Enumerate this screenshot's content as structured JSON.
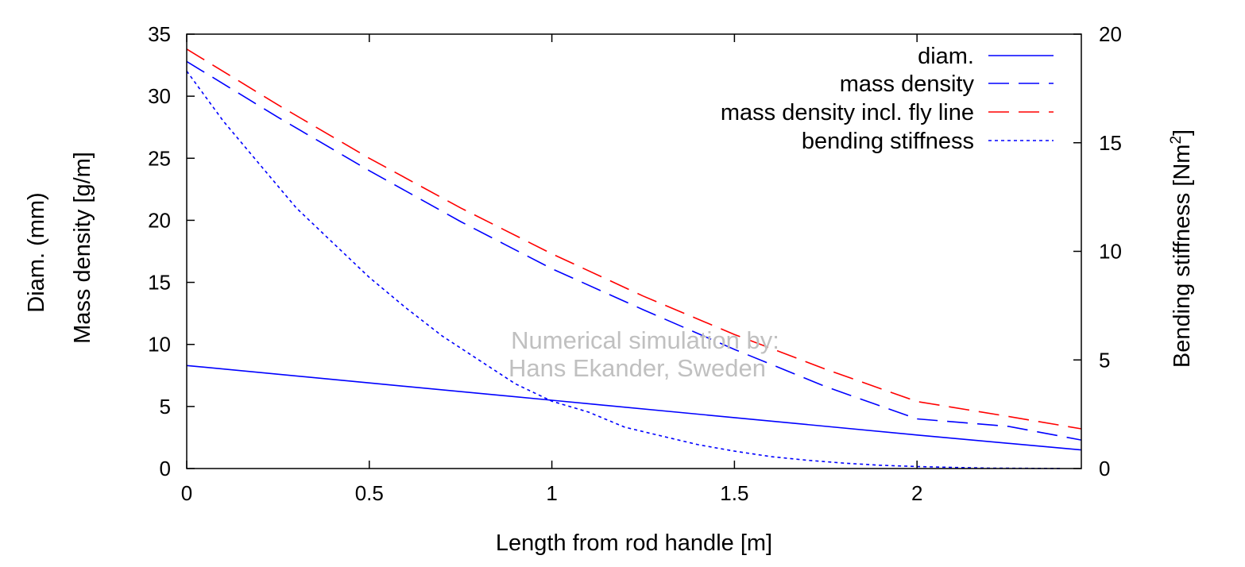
{
  "chart_data": {
    "type": "line",
    "title": "",
    "xlabel": "Length from rod handle [m]",
    "ylabel_line1": "Diam. (mm)",
    "ylabel_line2": "Mass density [g/m]",
    "y2label_main": "Bending stiffness [Nm",
    "y2label_sup": "2",
    "y2label_end": "]",
    "xlim": [
      0,
      2.45
    ],
    "ylim": [
      0,
      35
    ],
    "y2lim": [
      0,
      20
    ],
    "x_ticks": [
      0,
      0.5,
      1,
      1.5,
      2
    ],
    "x_tick_labels": [
      "0",
      "0.5",
      "1",
      "1.5",
      "2"
    ],
    "y_ticks": [
      0,
      5,
      10,
      15,
      20,
      25,
      30,
      35
    ],
    "y_tick_labels": [
      "0",
      "5",
      "10",
      "15",
      "20",
      "25",
      "30",
      "35"
    ],
    "y2_ticks": [
      0,
      5,
      10,
      15,
      20
    ],
    "y2_tick_labels": [
      "0",
      "5",
      "10",
      "15",
      "20"
    ],
    "grid": false,
    "legend_position": "top-right",
    "watermark": [
      "Numerical simulation by:",
      "Hans Ekander, Sweden"
    ],
    "series": [
      {
        "name": "diam.",
        "axis": "left",
        "color": "#0000ff",
        "dash": "solid",
        "x": [
          0,
          0.5,
          1.0,
          1.5,
          2.0,
          2.45
        ],
        "y": [
          8.3,
          6.9,
          5.5,
          4.1,
          2.7,
          1.5
        ]
      },
      {
        "name": "mass density",
        "axis": "left",
        "color": "#0000ff",
        "dash": "long-dash",
        "x": [
          0,
          0.25,
          0.5,
          0.75,
          1.0,
          1.25,
          1.5,
          1.75,
          2.0,
          2.25,
          2.45
        ],
        "y": [
          32.8,
          28.3,
          24.0,
          19.9,
          16.1,
          12.8,
          9.6,
          6.6,
          4.0,
          3.4,
          2.3
        ]
      },
      {
        "name": "mass density incl. fly line",
        "axis": "left",
        "color": "#ff0000",
        "dash": "long-dash",
        "x": [
          0,
          0.25,
          0.5,
          0.75,
          1.0,
          1.25,
          1.5,
          1.75,
          2.0,
          2.25,
          2.45
        ],
        "y": [
          33.8,
          29.3,
          25.0,
          21.0,
          17.3,
          13.9,
          10.8,
          8.0,
          5.4,
          4.2,
          3.2
        ]
      },
      {
        "name": "bending stiffness",
        "axis": "right",
        "color": "#0000ff",
        "dash": "dotted",
        "x": [
          0,
          0.1,
          0.2,
          0.3,
          0.4,
          0.5,
          0.6,
          0.7,
          0.8,
          0.9,
          1.0,
          1.1,
          1.2,
          1.3,
          1.4,
          1.5,
          1.6,
          1.7,
          1.8,
          1.9,
          2.0,
          2.1,
          2.2,
          2.3,
          2.4
        ],
        "y": [
          18.3,
          16.0,
          14.0,
          12.0,
          10.4,
          8.8,
          7.4,
          6.1,
          5.0,
          3.9,
          3.1,
          2.6,
          1.9,
          1.5,
          1.1,
          0.8,
          0.55,
          0.38,
          0.25,
          0.15,
          0.09,
          0.05,
          0.02,
          0.01,
          0.0
        ]
      }
    ]
  }
}
